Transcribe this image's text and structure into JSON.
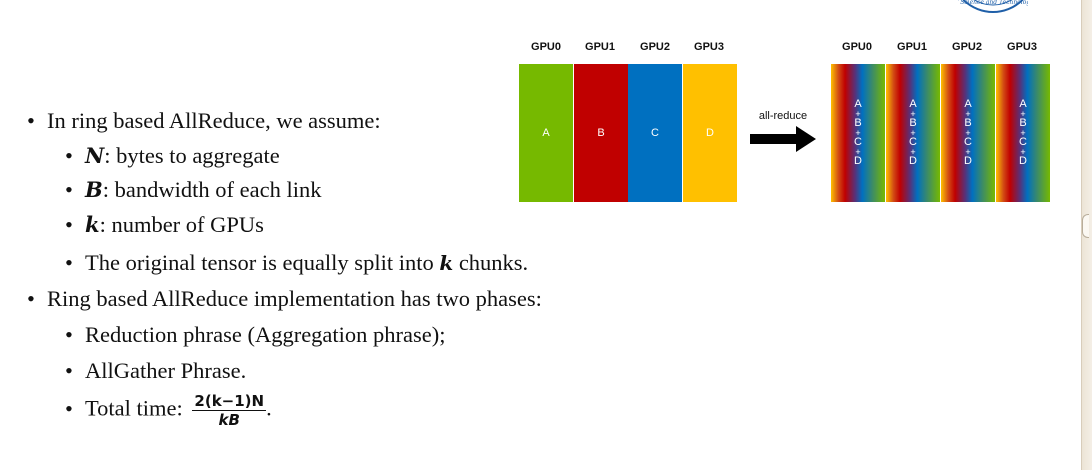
{
  "figure": {
    "before_gpus": [
      "GPU0",
      "GPU1",
      "GPU2",
      "GPU3"
    ],
    "before_chunks": [
      "A",
      "B",
      "C",
      "D"
    ],
    "after_gpus": [
      "GPU0",
      "GPU1",
      "GPU2",
      "GPU3"
    ],
    "arrow_label": "all-reduce",
    "reduced_symbols": [
      "A",
      "+",
      "B",
      "+",
      "C",
      "+",
      "D"
    ],
    "colors": {
      "gpu0": "#76b900",
      "gpu1": "#c00000",
      "gpu2": "#0070c0",
      "gpu3": "#ffc000"
    }
  },
  "content": {
    "intro": "In ring based AllReduce, we assume:",
    "assumptions": [
      {
        "symbol": "N",
        "text": ": bytes to aggregate"
      },
      {
        "symbol": "B",
        "text": ": bandwidth of each link"
      },
      {
        "symbol": "k",
        "text": ": number of GPUs"
      }
    ],
    "split_pre": "The original tensor is equally split into ",
    "split_symbol": "k",
    "split_post": " chunks.",
    "phases_intro": "Ring based AllReduce implementation has two phases:",
    "phase1": "Reduction phrase (Aggregation phrase);",
    "phase2": "AllGather Phrase.",
    "total_prefix": "Total time: ",
    "total_numerator": "2(k−1)N",
    "total_denominator": "kB",
    "total_suffix": "."
  }
}
